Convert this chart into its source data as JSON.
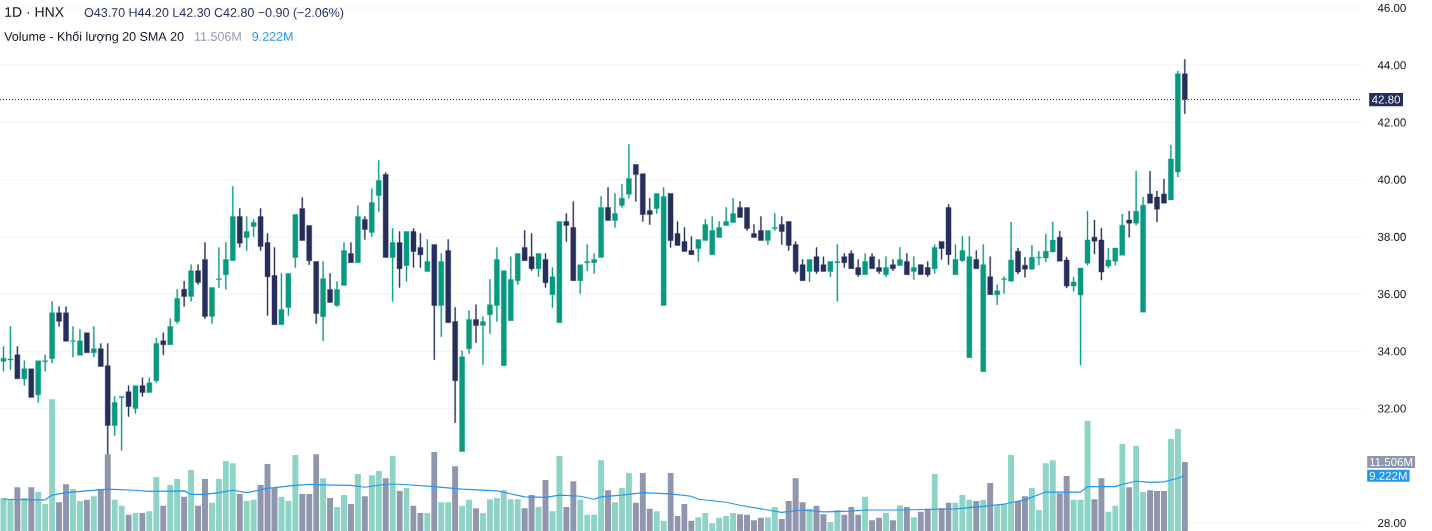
{
  "chart_data": {
    "type": "candlestick",
    "title": "1D · HNX",
    "annotations": [
      "O43.70 H44.20 L42.30 C42.80 −0.90 (−2.06%)",
      "Volume - Khối lượng 20 SMA 20",
      "11.506M",
      "9.222M"
    ],
    "categories": [
      null,
      null,
      null,
      null,
      null,
      null,
      null,
      null,
      null,
      null,
      null,
      null,
      null,
      null,
      null,
      null,
      null,
      null,
      null,
      null,
      null,
      null,
      null,
      null,
      null,
      null,
      null,
      null,
      null,
      null,
      null,
      null,
      null,
      null,
      null,
      null,
      null,
      null,
      null,
      null,
      null,
      null,
      null,
      null,
      null,
      null,
      null,
      null,
      null,
      null,
      null,
      null,
      null,
      null,
      null,
      null,
      null,
      null,
      null,
      null,
      null,
      null,
      null,
      null,
      null,
      null,
      null,
      null,
      null,
      null,
      null,
      null,
      null,
      null,
      null,
      null,
      null,
      null,
      null,
      null,
      null,
      null,
      null,
      null,
      null,
      null,
      null,
      null,
      null,
      null,
      null,
      null,
      null,
      null,
      null,
      null,
      null,
      null,
      null,
      null,
      null,
      null,
      null,
      null,
      null,
      null,
      null,
      null,
      null,
      null,
      null,
      null,
      null,
      null,
      null,
      null,
      null,
      null,
      null,
      null,
      null,
      null,
      null,
      null,
      null,
      null,
      null,
      null,
      null,
      null,
      null,
      null,
      null,
      null,
      null,
      null,
      null,
      null,
      null,
      null,
      null,
      null,
      null,
      null,
      null,
      null,
      null,
      null,
      null,
      null,
      null,
      null,
      null,
      null,
      null,
      null,
      null,
      null,
      null,
      null,
      null,
      null,
      null,
      null,
      null,
      null,
      null,
      null,
      null,
      null,
      null,
      null,
      null,
      null,
      null,
      null,
      null,
      null,
      null,
      null,
      null,
      null,
      null,
      null,
      null,
      null,
      null,
      null,
      null,
      null,
      null,
      null,
      null,
      null,
      null,
      null
    ],
    "ohlc": [
      [
        33.65,
        34.17,
        33.3,
        33.76
      ],
      [
        33.7,
        34.87,
        33.36,
        33.73
      ],
      [
        33.88,
        34.17,
        33.04,
        33.04
      ],
      [
        33.04,
        33.67,
        32.81,
        33.39
      ],
      [
        33.39,
        33.39,
        32.39,
        32.39
      ],
      [
        32.48,
        33.67,
        32.21,
        33.67
      ],
      [
        33.64,
        33.88,
        33.3,
        33.67
      ],
      [
        33.74,
        35.74,
        33.59,
        35.35
      ],
      [
        35.35,
        35.56,
        34.87,
        35.05
      ],
      [
        35.35,
        35.56,
        34.35,
        34.35
      ],
      [
        34.35,
        34.87,
        33.8,
        34.37
      ],
      [
        33.86,
        34.76,
        33.86,
        34.37
      ],
      [
        34.65,
        34.65,
        33.95,
        33.95
      ],
      [
        33.95,
        34.87,
        33.8,
        34.09
      ],
      [
        34.09,
        34.27,
        33.47,
        33.47
      ],
      [
        33.5,
        34.27,
        30.36,
        31.41
      ],
      [
        31.41,
        32.42,
        31.06,
        32.21
      ],
      [
        32.39,
        32.42,
        30.53,
        32.42
      ],
      [
        32.59,
        32.8,
        31.72,
        32.07
      ],
      [
        32.0,
        32.8,
        31.83,
        32.8
      ],
      [
        32.8,
        33.08,
        32.42,
        32.56
      ],
      [
        32.56,
        33.08,
        32.56,
        32.9
      ],
      [
        32.97,
        34.46,
        32.91,
        34.27
      ],
      [
        34.37,
        34.65,
        33.88,
        34.23
      ],
      [
        34.23,
        35.14,
        34.23,
        34.87
      ],
      [
        35.04,
        36.17,
        34.97,
        35.85
      ],
      [
        36.17,
        36.45,
        35.57,
        35.92
      ],
      [
        35.92,
        37.03,
        35.75,
        36.82
      ],
      [
        36.82,
        37.03,
        36.34,
        36.41
      ],
      [
        37.21,
        37.8,
        35.14,
        35.22
      ],
      [
        35.22,
        36.23,
        34.97,
        36.23
      ],
      [
        36.51,
        37.63,
        36.23,
        36.54
      ],
      [
        36.68,
        37.8,
        36.17,
        37.21
      ],
      [
        37.17,
        39.76,
        37.17,
        38.71
      ],
      [
        38.71,
        38.99,
        37.64,
        37.78
      ],
      [
        37.98,
        38.71,
        37.52,
        38.19
      ],
      [
        38.36,
        38.61,
        38.01,
        38.5
      ],
      [
        38.71,
        38.99,
        37.52,
        37.66
      ],
      [
        37.8,
        38.12,
        35.25,
        36.61
      ],
      [
        36.65,
        37.63,
        34.93,
        34.93
      ],
      [
        34.93,
        36.72,
        34.93,
        35.46
      ],
      [
        35.53,
        36.72,
        35.25,
        36.72
      ],
      [
        37.28,
        38.78,
        36.93,
        38.78
      ],
      [
        38.99,
        39.38,
        37.87,
        37.87
      ],
      [
        38.4,
        38.4,
        37.03,
        37.17
      ],
      [
        37.14,
        37.14,
        34.97,
        35.32
      ],
      [
        35.21,
        37.14,
        34.37,
        36.54
      ],
      [
        36.16,
        36.72,
        35.71,
        35.71
      ],
      [
        35.6,
        36.44,
        35.57,
        36.16
      ],
      [
        36.3,
        37.8,
        36.3,
        37.52
      ],
      [
        37.42,
        37.8,
        37.1,
        37.1
      ],
      [
        37.1,
        39.1,
        37.1,
        38.71
      ],
      [
        38.61,
        38.71,
        37.91,
        38.26
      ],
      [
        38.15,
        39.69,
        38.01,
        39.2
      ],
      [
        39.45,
        40.67,
        38.89,
        39.97
      ],
      [
        40.18,
        40.25,
        37.28,
        37.28
      ],
      [
        37.28,
        38.29,
        35.74,
        37.8
      ],
      [
        37.8,
        38.19,
        36.23,
        36.89
      ],
      [
        37.0,
        38.19,
        36.44,
        38.19
      ],
      [
        38.19,
        38.29,
        36.93,
        37.49
      ],
      [
        37.63,
        38.12,
        36.93,
        37.38
      ],
      [
        36.79,
        37.91,
        36.79,
        37.14
      ],
      [
        37.73,
        37.73,
        33.71,
        35.6
      ],
      [
        35.6,
        37.42,
        34.51,
        37.14
      ],
      [
        37.52,
        37.91,
        35.0,
        35.0
      ],
      [
        35.04,
        35.53,
        31.5,
        32.97
      ],
      [
        30.5,
        34.02,
        30.5,
        33.81
      ],
      [
        34.09,
        35.42,
        33.92,
        35.11
      ],
      [
        35.11,
        35.63,
        34.3,
        34.9
      ],
      [
        34.9,
        35.21,
        33.53,
        35.04
      ],
      [
        35.28,
        36.51,
        34.62,
        35.63
      ],
      [
        35.6,
        37.63,
        35.04,
        37.21
      ],
      [
        33.5,
        36.82,
        33.5,
        36.82
      ],
      [
        35.07,
        37.31,
        35.07,
        36.51
      ],
      [
        36.47,
        37.42,
        36.33,
        37.42
      ],
      [
        37.63,
        38.22,
        37.17,
        37.17
      ],
      [
        37.31,
        38.12,
        36.82,
        36.89
      ],
      [
        36.89,
        37.42,
        36.61,
        37.42
      ],
      [
        37.21,
        37.42,
        36.23,
        36.4
      ],
      [
        35.98,
        36.93,
        35.53,
        36.61
      ],
      [
        35.0,
        38.54,
        35.0,
        38.54
      ],
      [
        38.54,
        38.82,
        37.84,
        38.4
      ],
      [
        38.33,
        39.24,
        36.47,
        36.47
      ],
      [
        36.47,
        37.03,
        36.02,
        37.03
      ],
      [
        37.1,
        37.73,
        36.82,
        37.14
      ],
      [
        37.1,
        37.42,
        36.72,
        37.21
      ],
      [
        37.28,
        39.41,
        37.28,
        39.03
      ],
      [
        39.03,
        39.73,
        38.57,
        38.57
      ],
      [
        38.57,
        39.52,
        38.33,
        38.82
      ],
      [
        39.1,
        39.84,
        39.03,
        39.35
      ],
      [
        39.49,
        41.23,
        39.35,
        40.04
      ],
      [
        40.53,
        40.53,
        39.24,
        40.18
      ],
      [
        40.21,
        40.21,
        38.54,
        38.78
      ],
      [
        38.92,
        39.35,
        38.43,
        38.78
      ],
      [
        38.99,
        39.52,
        38.82,
        39.52
      ],
      [
        35.6,
        39.73,
        35.6,
        39.41
      ],
      [
        39.52,
        39.52,
        37.63,
        37.87
      ],
      [
        38.12,
        38.54,
        37.7,
        37.7
      ],
      [
        37.84,
        38.33,
        37.49,
        37.49
      ],
      [
        37.52,
        38.01,
        37.38,
        37.38
      ],
      [
        37.59,
        37.91,
        37.14,
        37.91
      ],
      [
        37.87,
        38.61,
        37.87,
        38.43
      ],
      [
        37.38,
        38.71,
        37.38,
        38.22
      ],
      [
        37.98,
        38.54,
        37.98,
        38.33
      ],
      [
        38.4,
        39.03,
        38.4,
        38.54
      ],
      [
        38.5,
        39.35,
        38.5,
        38.82
      ],
      [
        39.03,
        39.24,
        38.68,
        38.68
      ],
      [
        39.03,
        39.03,
        38.22,
        38.29
      ],
      [
        38.12,
        38.43,
        37.98,
        37.98
      ],
      [
        38.22,
        38.71,
        37.87,
        37.87
      ],
      [
        37.87,
        38.22,
        37.73,
        38.22
      ],
      [
        38.29,
        38.82,
        38.22,
        38.33
      ],
      [
        38.43,
        38.71,
        37.73,
        38.19
      ],
      [
        38.54,
        38.54,
        37.52,
        37.7
      ],
      [
        37.73,
        37.84,
        36.72,
        36.79
      ],
      [
        37.03,
        37.21,
        36.47,
        36.47
      ],
      [
        36.79,
        37.21,
        36.44,
        37.21
      ],
      [
        37.31,
        37.63,
        36.72,
        36.79
      ],
      [
        37.03,
        37.31,
        36.79,
        36.79
      ],
      [
        36.79,
        37.14,
        36.61,
        37.14
      ],
      [
        37.1,
        37.73,
        35.74,
        37.14
      ],
      [
        37.31,
        37.42,
        36.93,
        37.1
      ],
      [
        37.42,
        37.52,
        36.89,
        36.89
      ],
      [
        36.93,
        37.21,
        36.61,
        36.68
      ],
      [
        36.68,
        37.42,
        36.68,
        37.14
      ],
      [
        37.31,
        37.42,
        36.89,
        36.89
      ],
      [
        36.93,
        37.21,
        36.72,
        36.79
      ],
      [
        36.68,
        37.31,
        36.61,
        36.93
      ],
      [
        37.03,
        37.21,
        36.82,
        36.89
      ],
      [
        37.0,
        37.63,
        37.0,
        37.21
      ],
      [
        37.14,
        37.42,
        36.68,
        36.68
      ],
      [
        36.79,
        37.31,
        36.51,
        36.93
      ],
      [
        37.03,
        37.03,
        36.68,
        36.68
      ],
      [
        36.93,
        37.14,
        36.61,
        36.68
      ],
      [
        36.89,
        37.73,
        36.72,
        37.63
      ],
      [
        37.84,
        37.84,
        37.21,
        37.59
      ],
      [
        39.03,
        39.13,
        37.03,
        37.38
      ],
      [
        36.68,
        37.73,
        36.68,
        37.21
      ],
      [
        37.17,
        38.01,
        37.14,
        37.52
      ],
      [
        33.78,
        38.01,
        33.78,
        37.31
      ],
      [
        37.21,
        37.52,
        36.89,
        36.89
      ],
      [
        33.29,
        37.73,
        33.29,
        37.03
      ],
      [
        36.61,
        37.31,
        35.98,
        35.98
      ],
      [
        35.98,
        36.33,
        35.63,
        36.12
      ],
      [
        36.51,
        36.61,
        36.02,
        36.54
      ],
      [
        36.45,
        38.52,
        36.45,
        37.19
      ],
      [
        37.5,
        37.61,
        36.7,
        36.77
      ],
      [
        37.01,
        37.29,
        36.59,
        36.87
      ],
      [
        36.87,
        37.71,
        36.87,
        37.29
      ],
      [
        37.26,
        37.5,
        37.01,
        37.29
      ],
      [
        37.26,
        38.1,
        37.12,
        37.5
      ],
      [
        37.47,
        38.52,
        37.47,
        37.89
      ],
      [
        37.99,
        38.2,
        37.15,
        37.15
      ],
      [
        37.19,
        37.29,
        36.21,
        36.28
      ],
      [
        36.28,
        36.59,
        36.1,
        36.42
      ],
      [
        35.97,
        36.91,
        33.52,
        36.91
      ],
      [
        37.08,
        38.9,
        37.01,
        37.89
      ],
      [
        37.99,
        38.59,
        37.4,
        37.85
      ],
      [
        37.89,
        38.31,
        36.49,
        36.77
      ],
      [
        36.98,
        37.61,
        36.91,
        37.19
      ],
      [
        37.15,
        37.61,
        37.01,
        37.61
      ],
      [
        37.36,
        38.8,
        37.36,
        38.41
      ],
      [
        38.59,
        38.9,
        37.99,
        38.48
      ],
      [
        38.48,
        40.3,
        38.41,
        38.9
      ],
      [
        35.37,
        39.39,
        35.37,
        39.11
      ],
      [
        39.5,
        40.3,
        39.18,
        39.18
      ],
      [
        39.39,
        39.6,
        38.52,
        38.97
      ],
      [
        39.5,
        40.02,
        39.18,
        39.18
      ],
      [
        39.29,
        41.21,
        39.29,
        40.72
      ],
      [
        40.27,
        43.8,
        40.09,
        43.7
      ],
      [
        43.7,
        44.2,
        42.3,
        42.8
      ],
      null,
      null,
      null,
      null,
      null,
      null,
      null,
      null,
      null,
      null,
      null,
      null,
      null,
      null,
      null,
      null,
      null,
      null,
      null,
      null,
      null,
      null,
      null,
      null,
      null
    ],
    "colors": [
      "#089981",
      "#089981",
      "#262e5c",
      "#089981",
      "#262e5c",
      "#089981",
      "#089981",
      "#089981",
      "#262e5c",
      "#262e5c",
      "#089981",
      "#089981",
      "#262e5c",
      "#089981",
      "#262e5c",
      "#262e5c",
      "#089981",
      "#089981",
      "#262e5c",
      "#089981",
      "#262e5c",
      "#089981",
      "#089981",
      "#262e5c",
      "#089981",
      "#089981",
      "#262e5c",
      "#089981",
      "#262e5c",
      "#262e5c",
      "#089981",
      "#089981",
      "#089981",
      "#089981",
      "#262e5c",
      "#089981",
      "#089981",
      "#262e5c",
      "#262e5c",
      "#262e5c",
      "#089981",
      "#089981",
      "#089981",
      "#262e5c",
      "#262e5c",
      "#262e5c",
      "#089981",
      "#262e5c",
      "#089981",
      "#089981",
      "#262e5c",
      "#089981",
      "#262e5c",
      "#089981",
      "#089981",
      "#262e5c",
      "#089981",
      "#262e5c",
      "#089981",
      "#262e5c",
      "#262e5c",
      "#089981",
      "#262e5c",
      "#089981",
      "#262e5c",
      "#262e5c",
      "#089981",
      "#089981",
      "#262e5c",
      "#089981",
      "#089981",
      "#089981",
      "#089981",
      "#089981",
      "#089981",
      "#262e5c",
      "#262e5c",
      "#089981",
      "#262e5c",
      "#089981",
      "#089981",
      "#262e5c",
      "#262e5c",
      "#089981",
      "#089981",
      "#089981",
      "#089981",
      "#262e5c",
      "#089981",
      "#089981",
      "#089981",
      "#262e5c",
      "#262e5c",
      "#262e5c",
      "#089981",
      "#089981",
      "#262e5c",
      "#262e5c",
      "#262e5c",
      "#262e5c",
      "#089981",
      "#089981",
      "#089981",
      "#089981",
      "#089981",
      "#089981",
      "#262e5c",
      "#262e5c",
      "#262e5c",
      "#262e5c",
      "#089981",
      "#089981",
      "#262e5c",
      "#262e5c",
      "#262e5c",
      "#262e5c",
      "#089981",
      "#262e5c",
      "#262e5c",
      "#089981",
      "#089981",
      "#262e5c",
      "#262e5c",
      "#262e5c",
      "#089981",
      "#262e5c",
      "#262e5c",
      "#089981",
      "#262e5c",
      "#089981",
      "#262e5c",
      "#089981",
      "#262e5c",
      "#262e5c",
      "#089981",
      "#262e5c",
      "#262e5c",
      "#089981",
      "#089981",
      "#089981",
      "#262e5c",
      "#089981",
      "#262e5c",
      "#089981",
      "#089981",
      "#089981",
      "#262e5c",
      "#262e5c",
      "#089981",
      "#089981",
      "#089981",
      "#089981",
      "#262e5c",
      "#262e5c",
      "#089981",
      "#089981",
      "#089981",
      "#262e5c",
      "#262e5c",
      "#089981",
      "#089981",
      "#089981",
      "#262e5c",
      "#089981",
      "#089981",
      "#262e5c",
      "#262e5c",
      "#262e5c",
      "#089981",
      "#089981",
      "#262e5c",
      null,
      null,
      null,
      null,
      null,
      null,
      null,
      null,
      null,
      null,
      null,
      null,
      null,
      null,
      null,
      null,
      null,
      null,
      null,
      null,
      null,
      null,
      null,
      null,
      null
    ],
    "ylim": [
      28,
      46
    ],
    "yticks": [
      {
        "value": 28,
        "label": "28.00"
      },
      {
        "value": 32,
        "label": "32.00"
      },
      {
        "value": 34,
        "label": "34.00"
      },
      {
        "value": 36,
        "label": "36.00"
      },
      {
        "value": 38,
        "label": "38.00"
      },
      {
        "value": 40,
        "label": "40.00"
      },
      {
        "value": 42,
        "label": "42.00"
      },
      {
        "value": 44,
        "label": "44.00"
      },
      {
        "value": 46,
        "label": "46.00"
      }
    ],
    "y2lim": [
      0,
      88.6
    ],
    "y2ticks": [
      {
        "value": 11.506,
        "label": "11.506M"
      },
      {
        "value": 9.222,
        "label": "9.222M"
      }
    ],
    "grid": "y",
    "ref_lines": [
      {
        "axis": "y",
        "value": 42.8,
        "label": "42.80",
        "color": "#262e5c",
        "line_style": "dotted"
      }
    ],
    "series": [
      {
        "type": "bar",
        "axis": "y2",
        "values": [
          5.5,
          5.3,
          7.3,
          5.5,
          7.3,
          6.5,
          4.5,
          22.0,
          4.8,
          7.8,
          7.0,
          5.0,
          5.2,
          5.8,
          7.0,
          12.8,
          5.2,
          4.2,
          2.7,
          3.0,
          3.0,
          3.3,
          9.0,
          4.2,
          7.7,
          8.7,
          5.7,
          10.2,
          4.2,
          8.7,
          4.7,
          8.7,
          11.7,
          11.3,
          6.2,
          5.0,
          5.2,
          7.7,
          11.2,
          7.2,
          5.7,
          5.0,
          12.7,
          6.2,
          6.2,
          12.8,
          8.8,
          5.5,
          4.0,
          6.0,
          4.5,
          9.5,
          5.8,
          9.3,
          10.0,
          8.8,
          12.5,
          6.7,
          7.2,
          4.2,
          3.0,
          3.0,
          13.2,
          4.8,
          4.8,
          10.8,
          4.2,
          5.2,
          3.8,
          3.0,
          5.3,
          5.5,
          6.8,
          5.3,
          5.3,
          3.8,
          6.0,
          4.0,
          8.5,
          3.3,
          12.5,
          4.0,
          8.3,
          5.2,
          2.7,
          2.7,
          11.8,
          6.8,
          4.8,
          7.2,
          9.7,
          4.7,
          9.7,
          3.7,
          3.3,
          1.7,
          9.7,
          2.5,
          4.5,
          1.7,
          2.3,
          3.0,
          1.3,
          2.2,
          2.5,
          3.0,
          2.8,
          2.7,
          1.8,
          2.2,
          2.3,
          4.0,
          2.0,
          5.0,
          8.8,
          4.8,
          3.7,
          4.2,
          2.8,
          1.5,
          3.5,
          2.7,
          4.0,
          2.7,
          5.7,
          1.8,
          2.2,
          3.0,
          1.8,
          4.3,
          4.0,
          2.3,
          3.2,
          3.7,
          9.5,
          3.8,
          4.7,
          4.7,
          6.0,
          5.2,
          5.0,
          5.2,
          8.0,
          4.3,
          4.5,
          12.7,
          5.0,
          5.8,
          7.2,
          3.5,
          11.3,
          11.8,
          6.3,
          9.2,
          5.2,
          5.2,
          18.4,
          5.3,
          8.8,
          3.2,
          4.2,
          14.5,
          7.3,
          14.2,
          6.5,
          6.8,
          6.7,
          6.7,
          15.4,
          17.0,
          11.506,
          null,
          null,
          null,
          null,
          null,
          null,
          null,
          null,
          null,
          null,
          null,
          null,
          null,
          null,
          null,
          null,
          null,
          null,
          null,
          null,
          null,
          null,
          null,
          null,
          null
        ],
        "colors": [
          "#8ed4c6",
          "#8ed4c6",
          "#9096ae",
          "#8ed4c6",
          "#9096ae",
          "#8ed4c6",
          "#8ed4c6",
          "#8ed4c6",
          "#9096ae",
          "#9096ae",
          "#8ed4c6",
          "#8ed4c6",
          "#9096ae",
          "#8ed4c6",
          "#9096ae",
          "#9096ae",
          "#8ed4c6",
          "#8ed4c6",
          "#9096ae",
          "#8ed4c6",
          "#9096ae",
          "#8ed4c6",
          "#8ed4c6",
          "#9096ae",
          "#8ed4c6",
          "#8ed4c6",
          "#9096ae",
          "#8ed4c6",
          "#9096ae",
          "#9096ae",
          "#8ed4c6",
          "#8ed4c6",
          "#8ed4c6",
          "#8ed4c6",
          "#9096ae",
          "#8ed4c6",
          "#8ed4c6",
          "#9096ae",
          "#9096ae",
          "#9096ae",
          "#8ed4c6",
          "#8ed4c6",
          "#8ed4c6",
          "#9096ae",
          "#9096ae",
          "#9096ae",
          "#8ed4c6",
          "#9096ae",
          "#8ed4c6",
          "#8ed4c6",
          "#9096ae",
          "#8ed4c6",
          "#9096ae",
          "#8ed4c6",
          "#8ed4c6",
          "#9096ae",
          "#8ed4c6",
          "#9096ae",
          "#8ed4c6",
          "#9096ae",
          "#9096ae",
          "#8ed4c6",
          "#9096ae",
          "#8ed4c6",
          "#8ed4c6",
          "#9096ae",
          "#8ed4c6",
          "#8ed4c6",
          "#9096ae",
          "#8ed4c6",
          "#8ed4c6",
          "#8ed4c6",
          "#8ed4c6",
          "#8ed4c6",
          "#8ed4c6",
          "#9096ae",
          "#9096ae",
          "#8ed4c6",
          "#9096ae",
          "#8ed4c6",
          "#8ed4c6",
          "#9096ae",
          "#9096ae",
          "#8ed4c6",
          "#8ed4c6",
          "#8ed4c6",
          "#8ed4c6",
          "#9096ae",
          "#8ed4c6",
          "#8ed4c6",
          "#8ed4c6",
          "#9096ae",
          "#9096ae",
          "#9096ae",
          "#8ed4c6",
          "#8ed4c6",
          "#9096ae",
          "#9096ae",
          "#9096ae",
          "#9096ae",
          "#8ed4c6",
          "#8ed4c6",
          "#8ed4c6",
          "#8ed4c6",
          "#8ed4c6",
          "#8ed4c6",
          "#9096ae",
          "#9096ae",
          "#9096ae",
          "#9096ae",
          "#8ed4c6",
          "#8ed4c6",
          "#9096ae",
          "#9096ae",
          "#9096ae",
          "#9096ae",
          "#8ed4c6",
          "#9096ae",
          "#9096ae",
          "#8ed4c6",
          "#8ed4c6",
          "#9096ae",
          "#9096ae",
          "#9096ae",
          "#8ed4c6",
          "#9096ae",
          "#9096ae",
          "#8ed4c6",
          "#9096ae",
          "#8ed4c6",
          "#9096ae",
          "#8ed4c6",
          "#9096ae",
          "#9096ae",
          "#8ed4c6",
          "#9096ae",
          "#9096ae",
          "#8ed4c6",
          "#8ed4c6",
          "#8ed4c6",
          "#9096ae",
          "#8ed4c6",
          "#9096ae",
          "#8ed4c6",
          "#8ed4c6",
          "#8ed4c6",
          "#9096ae",
          "#9096ae",
          "#8ed4c6",
          "#8ed4c6",
          "#8ed4c6",
          "#8ed4c6",
          "#9096ae",
          "#9096ae",
          "#8ed4c6",
          "#8ed4c6",
          "#8ed4c6",
          "#9096ae",
          "#9096ae",
          "#8ed4c6",
          "#8ed4c6",
          "#8ed4c6",
          "#9096ae",
          "#8ed4c6",
          "#8ed4c6",
          "#9096ae",
          "#9096ae",
          "#9096ae",
          "#8ed4c6",
          "#8ed4c6",
          "#9096ae",
          null,
          null,
          null,
          null,
          null,
          null,
          null,
          null,
          null,
          null,
          null,
          null,
          null,
          null,
          null,
          null,
          null,
          null,
          null,
          null,
          null,
          null,
          null,
          null,
          null
        ]
      },
      {
        "type": "line",
        "axis": "y2",
        "color": "#2196f3",
        "values": [
          5.3,
          null,
          null,
          null,
          5.2,
          null,
          5.2,
          6.0,
          null,
          6.4,
          null,
          null,
          null,
          null,
          null,
          7.0,
          null,
          null,
          null,
          6.8,
          null,
          6.6,
          null,
          null,
          null,
          null,
          6.7,
          6.1,
          null,
          6.1,
          null,
          6.4,
          null,
          6.8,
          null,
          6.4,
          null,
          null,
          7.1,
          null,
          null,
          null,
          7.6,
          null,
          7.8,
          null,
          7.7,
          null,
          null,
          null,
          7.6,
          null,
          7.3,
          null,
          null,
          7.8,
          null,
          7.8,
          null,
          null,
          null,
          null,
          7.4,
          null,
          null,
          null,
          7.0,
          null,
          null,
          null,
          null,
          6.7,
          null,
          null,
          null,
          5.7,
          null,
          null,
          5.6,
          null,
          6.0,
          null,
          null,
          5.8,
          null,
          5.3,
          5.7,
          null,
          null,
          6.0,
          null,
          null,
          6.4,
          null,
          null,
          null,
          6.2,
          null,
          null,
          5.8,
          5.3,
          null,
          null,
          null,
          4.8,
          null,
          4.3,
          null,
          null,
          3.7,
          null,
          null,
          3.1,
          null,
          null,
          3.5,
          null,
          null,
          3.2,
          null,
          null,
          null,
          3.3,
          null,
          3.5,
          null,
          null,
          null,
          null,
          3.5,
          null,
          null,
          null,
          null,
          null,
          null,
          null,
          3.7,
          null,
          null,
          null,
          4.1,
          null,
          null,
          4.5,
          null,
          null,
          5.2,
          null,
          null,
          6.5,
          null,
          null,
          null,
          null,
          6.5,
          7.4,
          null,
          null,
          null,
          7.4,
          7.8,
          null,
          8.3,
          null,
          8.1,
          null,
          8.2,
          null,
          8.8,
          9.222,
          null,
          null,
          null,
          null,
          null,
          null,
          null,
          null,
          null,
          null,
          null,
          null,
          null,
          null,
          null,
          null,
          null,
          null,
          null,
          null,
          null,
          null,
          null,
          null,
          null
        ]
      }
    ]
  }
}
